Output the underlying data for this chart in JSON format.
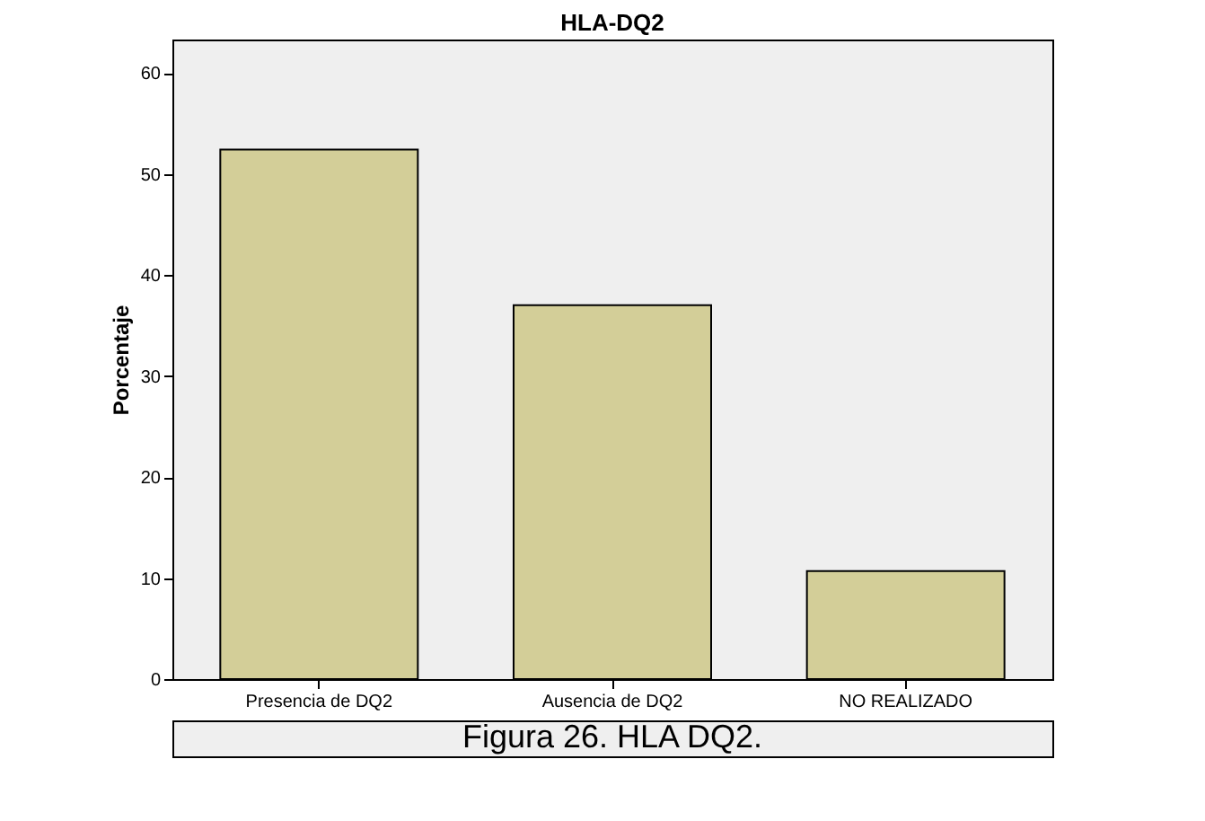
{
  "chart_data": {
    "type": "bar",
    "title": "HLA-DQ2",
    "ylabel": "Porcentaje",
    "categories": [
      "Presencia de DQ2",
      "Ausencia de DQ2",
      "NO REALIZADO"
    ],
    "values": [
      52.4,
      37.0,
      10.7
    ],
    "color": "#d3ce98",
    "ylim": [
      0,
      63.3
    ],
    "yticks": [
      0,
      10,
      20,
      30,
      40,
      50,
      60
    ],
    "grid": false,
    "annotations": [
      "Figura 26. HLA DQ2."
    ]
  }
}
